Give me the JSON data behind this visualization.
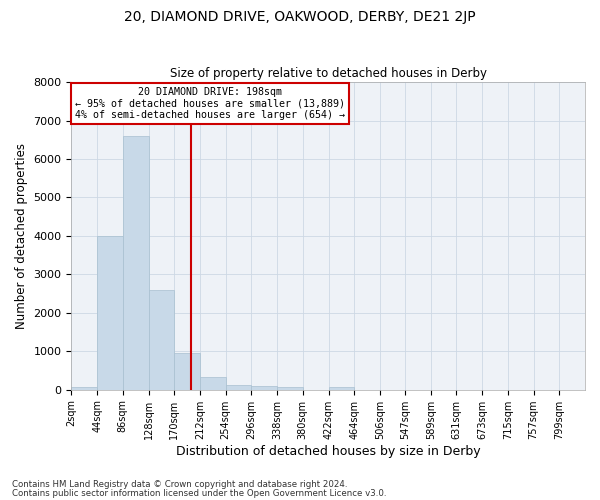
{
  "title": "20, DIAMOND DRIVE, OAKWOOD, DERBY, DE21 2JP",
  "subtitle": "Size of property relative to detached houses in Derby",
  "xlabel": "Distribution of detached houses by size in Derby",
  "ylabel": "Number of detached properties",
  "bar_color": "#c8d9e8",
  "bar_edgecolor": "#a8bfd0",
  "vline_value": 198,
  "vline_color": "#cc0000",
  "annotation_lines": [
    "20 DIAMOND DRIVE: 198sqm",
    "← 95% of detached houses are smaller (13,889)",
    "4% of semi-detached houses are larger (654) →"
  ],
  "bin_edges": [
    2,
    44,
    86,
    128,
    170,
    212,
    254,
    296,
    338,
    380,
    422,
    464,
    506,
    547,
    589,
    631,
    673,
    715,
    757,
    799,
    841
  ],
  "counts": [
    70,
    4000,
    6600,
    2600,
    960,
    330,
    120,
    100,
    60,
    0,
    80,
    0,
    0,
    0,
    0,
    0,
    0,
    0,
    0,
    0
  ],
  "ylim": [
    0,
    8000
  ],
  "yticks": [
    0,
    1000,
    2000,
    3000,
    4000,
    5000,
    6000,
    7000,
    8000
  ],
  "footnote1": "Contains HM Land Registry data © Crown copyright and database right 2024.",
  "footnote2": "Contains public sector information licensed under the Open Government Licence v3.0.",
  "background_color": "#eef2f7",
  "grid_color": "#cdd8e4"
}
